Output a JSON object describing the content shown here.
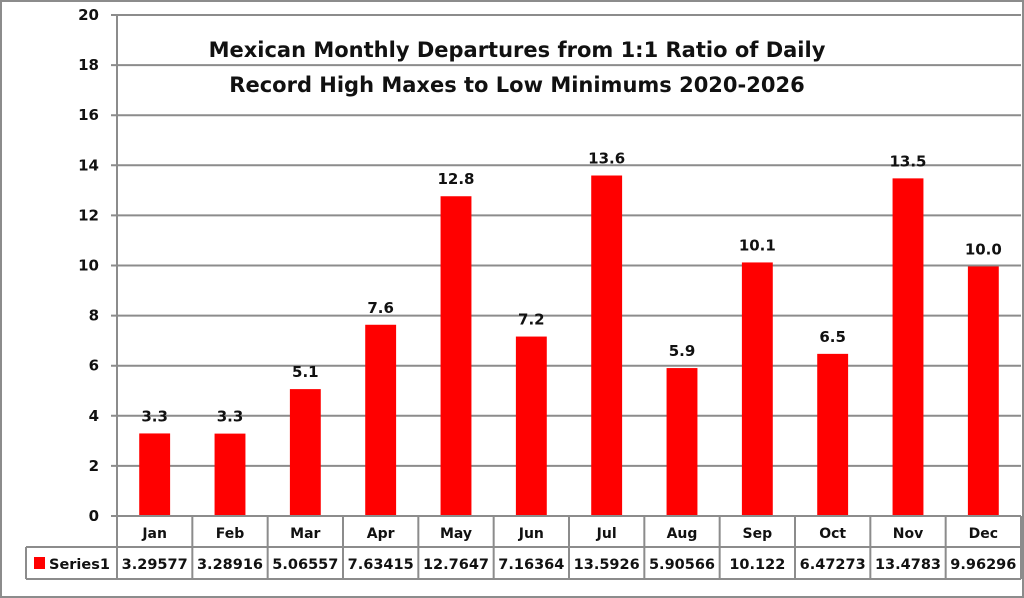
{
  "chart_data": {
    "type": "bar",
    "title_lines": [
      "Mexican Monthly Departures from 1:1 Ratio of Daily",
      "Record High Maxes to Low Minimums 2020-2026"
    ],
    "categories": [
      "Jan",
      "Feb",
      "Mar",
      "Apr",
      "May",
      "Jun",
      "Jul",
      "Aug",
      "Sep",
      "Oct",
      "Nov",
      "Dec"
    ],
    "series": [
      {
        "name": "Series1",
        "color": "#ff0000",
        "values": [
          3.29577,
          3.28916,
          5.06557,
          7.63415,
          12.7647,
          7.16364,
          13.5926,
          5.90566,
          10.122,
          6.47273,
          13.4783,
          9.96296
        ],
        "data_labels": [
          "3.3",
          "3.3",
          "5.1",
          "7.6",
          "12.8",
          "7.2",
          "13.6",
          "5.9",
          "10.1",
          "6.5",
          "13.5",
          "10.0"
        ],
        "table_values": [
          "3.29577",
          "3.28916",
          "5.06557",
          "7.63415",
          "12.7647",
          "7.16364",
          "13.5926",
          "5.90566",
          "10.122",
          "6.47273",
          "13.4783",
          "9.96296"
        ]
      }
    ],
    "xlabel": "",
    "ylabel": "",
    "ylim": [
      0,
      20
    ],
    "yticks": [
      "0",
      "2",
      "4",
      "6",
      "8",
      "10",
      "12",
      "14",
      "16",
      "18",
      "20"
    ],
    "grid": true,
    "legend": "data-table-left",
    "data_table": true
  }
}
